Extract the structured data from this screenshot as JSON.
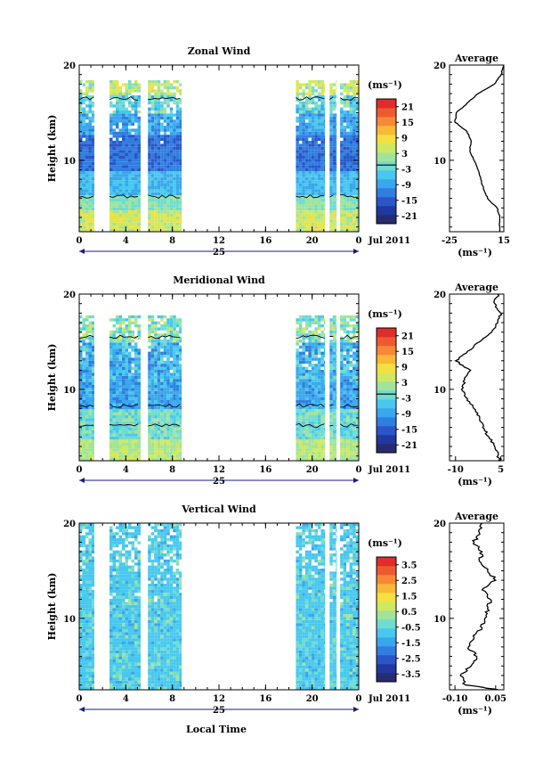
{
  "xaxis": {
    "date_label": "Jul 2011",
    "day_label": "25",
    "title": "Local Time",
    "ticks": [
      "0",
      "4",
      "8",
      "12",
      "16",
      "20",
      "0"
    ],
    "range_hours": [
      0,
      24
    ]
  },
  "colorbar_unit": "(ms⁻¹)",
  "avg_unit": "(ms⁻¹)",
  "avg_title": "Average",
  "colors": [
    "#282c6e",
    "#2038a0",
    "#2a56c8",
    "#2f7ee0",
    "#3aa6ec",
    "#48c8ee",
    "#70dcd0",
    "#a0e49c",
    "#d0e860",
    "#f4e040",
    "#f8b838",
    "#f68838",
    "#ee5a30",
    "#e02c2c"
  ],
  "chart_data": [
    {
      "type": "heatmap",
      "title": "Zonal Wind",
      "ylabel": "Height (km)",
      "ylim": [
        2.5,
        20
      ],
      "yticks": [
        "10",
        "20"
      ],
      "colorbar_ticks": [
        "21",
        "15",
        "9",
        "3",
        "-3",
        "-9",
        "-15",
        "-21"
      ],
      "colorbar_range": [
        -24,
        24
      ],
      "data_columns_hours": [
        [
          0,
          1.3
        ],
        [
          2.6,
          5.3
        ],
        [
          5.9,
          8.8
        ],
        [
          18.6,
          21.1
        ],
        [
          21.5,
          22.1
        ],
        [
          22.4,
          24
        ]
      ],
      "profile": {
        "title": "Average",
        "xticks": [
          "-25",
          "15"
        ],
        "xlim": [
          -25,
          15
        ],
        "height_km": [
          2.5,
          4,
          5,
          6,
          7,
          8,
          9,
          10,
          11,
          12,
          13,
          14,
          15,
          16,
          17,
          18,
          19,
          20
        ],
        "value": [
          12,
          12,
          10,
          3,
          0,
          -2,
          -4,
          -7,
          -10,
          -9,
          -12,
          -21,
          -20,
          -12,
          -4,
          8,
          13,
          15
        ]
      }
    },
    {
      "type": "heatmap",
      "title": "Meridional Wind",
      "ylabel": "Height (km)",
      "ylim": [
        2.5,
        20
      ],
      "yticks": [
        "10",
        "20"
      ],
      "colorbar_ticks": [
        "21",
        "15",
        "9",
        "3",
        "-3",
        "-9",
        "-15",
        "-21"
      ],
      "colorbar_range": [
        -24,
        24
      ],
      "data_columns_hours": [
        [
          0,
          1.3
        ],
        [
          2.6,
          5.3
        ],
        [
          5.9,
          8.8
        ],
        [
          18.6,
          21.1
        ],
        [
          21.5,
          22.1
        ],
        [
          22.4,
          24
        ]
      ],
      "profile": {
        "title": "Average",
        "xticks": [
          "-10",
          "5"
        ],
        "xlim": [
          -12,
          6
        ],
        "height_km": [
          2.5,
          3,
          4,
          5,
          6,
          7,
          8,
          9,
          10,
          11,
          12,
          13,
          14,
          15,
          16,
          17,
          18,
          19,
          20
        ],
        "value": [
          5,
          4,
          3,
          1,
          -1,
          -2,
          -4,
          -6,
          -8,
          -7,
          -5,
          -10,
          -6,
          -2,
          2,
          4,
          5,
          3,
          4
        ]
      }
    },
    {
      "type": "heatmap",
      "title": "Vertical Wind",
      "ylabel": "Height (km)",
      "ylim": [
        2.5,
        20
      ],
      "yticks": [
        "10",
        "20"
      ],
      "colorbar_ticks": [
        "3.5",
        "2.5",
        "1.5",
        "0.5",
        "-0.5",
        "-1.5",
        "-2.5",
        "-3.5"
      ],
      "colorbar_range": [
        -4,
        4
      ],
      "data_columns_hours": [
        [
          0,
          1.3
        ],
        [
          2.6,
          5.3
        ],
        [
          5.9,
          8.8
        ],
        [
          18.6,
          21.1
        ],
        [
          21.5,
          22.1
        ],
        [
          22.4,
          24
        ]
      ],
      "profile": {
        "title": "Average",
        "xticks": [
          "-0.10",
          "0.05"
        ],
        "xlim": [
          -0.12,
          0.08
        ],
        "height_km": [
          2.5,
          3,
          4,
          5,
          6,
          7,
          8,
          9,
          10,
          11,
          12,
          13,
          14,
          15,
          16,
          17,
          18,
          19,
          20
        ],
        "value": [
          0.06,
          -0.06,
          -0.08,
          -0.04,
          -0.02,
          -0.05,
          -0.03,
          0.0,
          0.01,
          0.02,
          0.03,
          0.0,
          0.05,
          0.02,
          -0.01,
          0.0,
          -0.03,
          -0.01,
          0.0
        ]
      }
    }
  ]
}
